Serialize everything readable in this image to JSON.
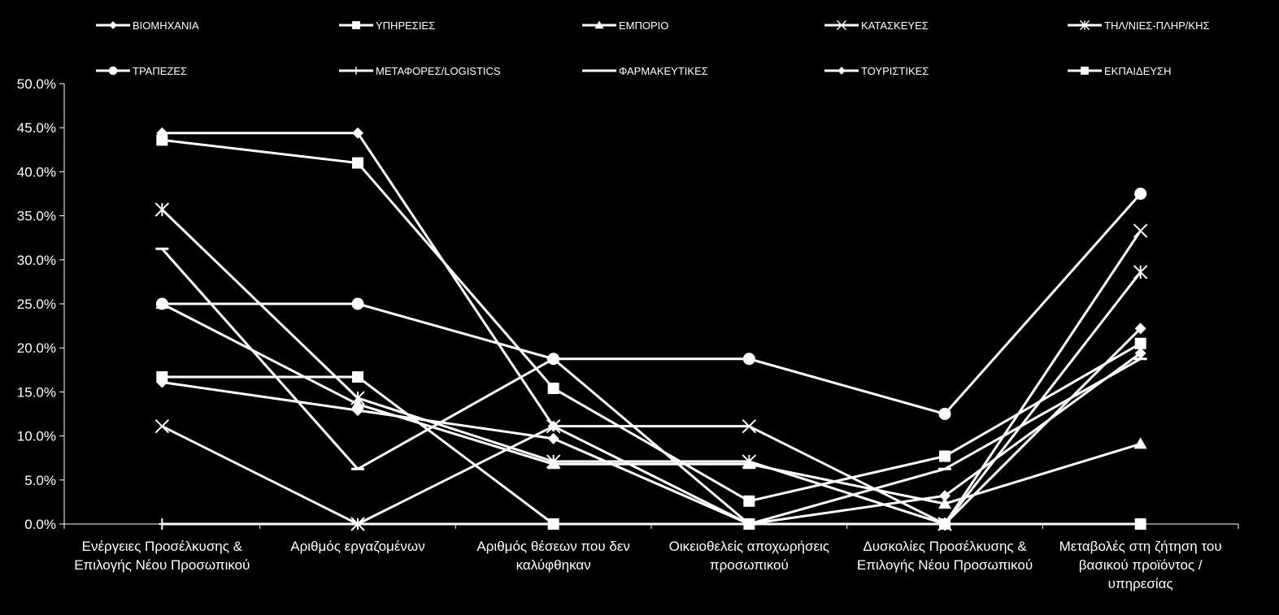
{
  "chart_data": {
    "type": "line",
    "title": "",
    "xlabel": "",
    "ylabel": "",
    "ylim": [
      0,
      50
    ],
    "ytick_step": 5,
    "y_tick_format": "percent_1dp",
    "grid": false,
    "legend_position": "top",
    "colors": {
      "background": "#000000",
      "series": "#ffffff",
      "axis": "#ffffff"
    },
    "categories": [
      [
        "Ενέργειες Προσέλκυσης &",
        "Επιλογής Νέου Προσωπικού"
      ],
      [
        "Αριθμός εργαζομένων"
      ],
      [
        "Αριθμός θέσεων που δεν",
        "καλύφθηκαν"
      ],
      [
        "Οικειοθελείς αποχωρήσεις",
        "προσωπικού"
      ],
      [
        "Δυσκολίες Προσέλκυσης &",
        "Επιλογής Νέου Προσωπικού"
      ],
      [
        "Μεταβολές στη ζήτηση του",
        "βασικού προϊόντος /",
        "υπηρεσίας"
      ]
    ],
    "series": [
      {
        "name": "ΒΙΟΜΗΧΑΝΙΑ",
        "marker": "diamond",
        "values": [
          44.4,
          44.4,
          11.1,
          0,
          0,
          22.2
        ]
      },
      {
        "name": "ΥΠΗΡΕΣΙΕΣ",
        "marker": "square",
        "values": [
          43.6,
          41.0,
          15.4,
          2.6,
          7.7,
          20.5
        ]
      },
      {
        "name": "ΕΜΠΟΡΙΟ",
        "marker": "triangle",
        "values": [
          25.0,
          13.6,
          6.8,
          6.8,
          2.3,
          9.1
        ]
      },
      {
        "name": "ΚΑΤΑΣΚΕΥΕΣ",
        "marker": "x",
        "values": [
          11.1,
          0,
          11.1,
          11.1,
          0,
          33.3
        ]
      },
      {
        "name": "ΤΗΛ/ΝΙΕΣ-ΠΛΗΡ/ΚΗΣ",
        "marker": "asterisk",
        "values": [
          35.7,
          14.3,
          7.1,
          7.1,
          0,
          28.6
        ]
      },
      {
        "name": "ΤΡΑΠΕΖΕΣ",
        "marker": "circle",
        "values": [
          25.0,
          25.0,
          18.75,
          18.75,
          12.5,
          37.5
        ]
      },
      {
        "name": "ΜΕΤΑΦΟΡΕΣ/LOGISTICS",
        "marker": "plus",
        "values": [
          0,
          0,
          0,
          0,
          0,
          0
        ]
      },
      {
        "name": "ΦΑΡΜΑΚΕΥΤΙΚΕΣ",
        "marker": "dash",
        "values": [
          31.25,
          6.25,
          18.75,
          0,
          6.25,
          18.75
        ]
      },
      {
        "name": "ΤΟΥΡΙΣΤΙΚΕΣ",
        "marker": "diamond",
        "values": [
          16.1,
          12.9,
          9.7,
          0,
          3.2,
          19.4
        ]
      },
      {
        "name": "ΕΚΠΑΙΔΕΥΣΗ",
        "marker": "square",
        "values": [
          16.7,
          16.7,
          0,
          0,
          0,
          0
        ]
      }
    ]
  }
}
